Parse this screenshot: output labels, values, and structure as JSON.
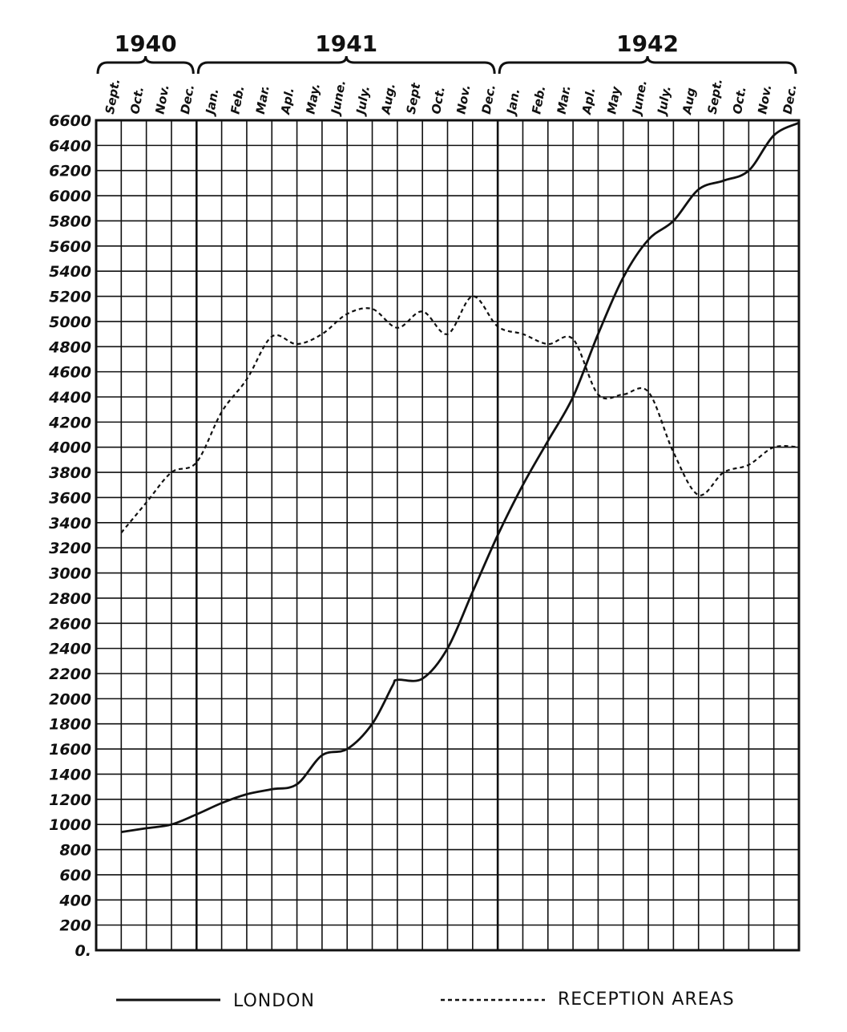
{
  "chart_data": {
    "type": "line",
    "years": [
      {
        "label": "1940",
        "start": 0,
        "end": 3
      },
      {
        "label": "1941",
        "start": 4,
        "end": 15
      },
      {
        "label": "1942",
        "start": 16,
        "end": 27
      }
    ],
    "categories": [
      "Sept.",
      "Oct.",
      "Nov.",
      "Dec.",
      "Jan.",
      "Feb.",
      "Mar.",
      "Apl.",
      "May.",
      "June.",
      "July.",
      "Aug.",
      "Sept",
      "Oct.",
      "Nov.",
      "Dec.",
      "Jan.",
      "Feb.",
      "Mar.",
      "Apl.",
      "May",
      "June.",
      "July.",
      "Aug",
      "Sept.",
      "Oct.",
      "Nov.",
      "Dec."
    ],
    "y_ticks": [
      "0.",
      "200",
      "400",
      "600",
      "800",
      "1000",
      "1200",
      "1400",
      "1600",
      "1800",
      "2000",
      "2200",
      "2400",
      "2600",
      "2800",
      "3000",
      "3200",
      "3400",
      "3600",
      "3800",
      "4000",
      "4200",
      "4400",
      "4600",
      "4800",
      "5000",
      "5200",
      "5400",
      "5600",
      "5800",
      "6000",
      "6200",
      "6400",
      "6600"
    ],
    "ylim": [
      0,
      6600
    ],
    "grid": true,
    "legend_position": "bottom",
    "series": [
      {
        "name": "LONDON",
        "style": "solid",
        "points": [
          [
            1,
            940
          ],
          [
            2,
            970
          ],
          [
            3,
            1000
          ],
          [
            4,
            1080
          ],
          [
            5,
            1170
          ],
          [
            6,
            1240
          ],
          [
            7,
            1280
          ],
          [
            8,
            1320
          ],
          [
            9,
            1550
          ],
          [
            10,
            1600
          ],
          [
            11,
            1800
          ],
          [
            11.8,
            2100
          ],
          [
            12,
            2150
          ],
          [
            13,
            2160
          ],
          [
            14,
            2400
          ],
          [
            15,
            2850
          ],
          [
            16,
            3300
          ],
          [
            17,
            3700
          ],
          [
            18,
            4050
          ],
          [
            19,
            4400
          ],
          [
            20,
            4900
          ],
          [
            21,
            5350
          ],
          [
            22,
            5650
          ],
          [
            23,
            5800
          ],
          [
            24,
            6050
          ],
          [
            25,
            6120
          ],
          [
            26,
            6200
          ],
          [
            27,
            6480
          ],
          [
            28,
            6580
          ]
        ]
      },
      {
        "name": "RECEPTION AREAS",
        "style": "dashed",
        "points": [
          [
            1,
            3320
          ],
          [
            2,
            3560
          ],
          [
            3,
            3800
          ],
          [
            4,
            3880
          ],
          [
            5,
            4280
          ],
          [
            6,
            4540
          ],
          [
            7,
            4880
          ],
          [
            8,
            4820
          ],
          [
            9,
            4900
          ],
          [
            10,
            5060
          ],
          [
            11,
            5100
          ],
          [
            12,
            4950
          ],
          [
            13,
            5080
          ],
          [
            14,
            4900
          ],
          [
            15,
            5200
          ],
          [
            16,
            4960
          ],
          [
            17,
            4900
          ],
          [
            18,
            4820
          ],
          [
            19,
            4860
          ],
          [
            20,
            4420
          ],
          [
            21,
            4420
          ],
          [
            22,
            4440
          ],
          [
            23,
            3960
          ],
          [
            24,
            3620
          ],
          [
            25,
            3800
          ],
          [
            26,
            3860
          ],
          [
            27,
            4000
          ],
          [
            28,
            4000
          ]
        ]
      }
    ]
  }
}
